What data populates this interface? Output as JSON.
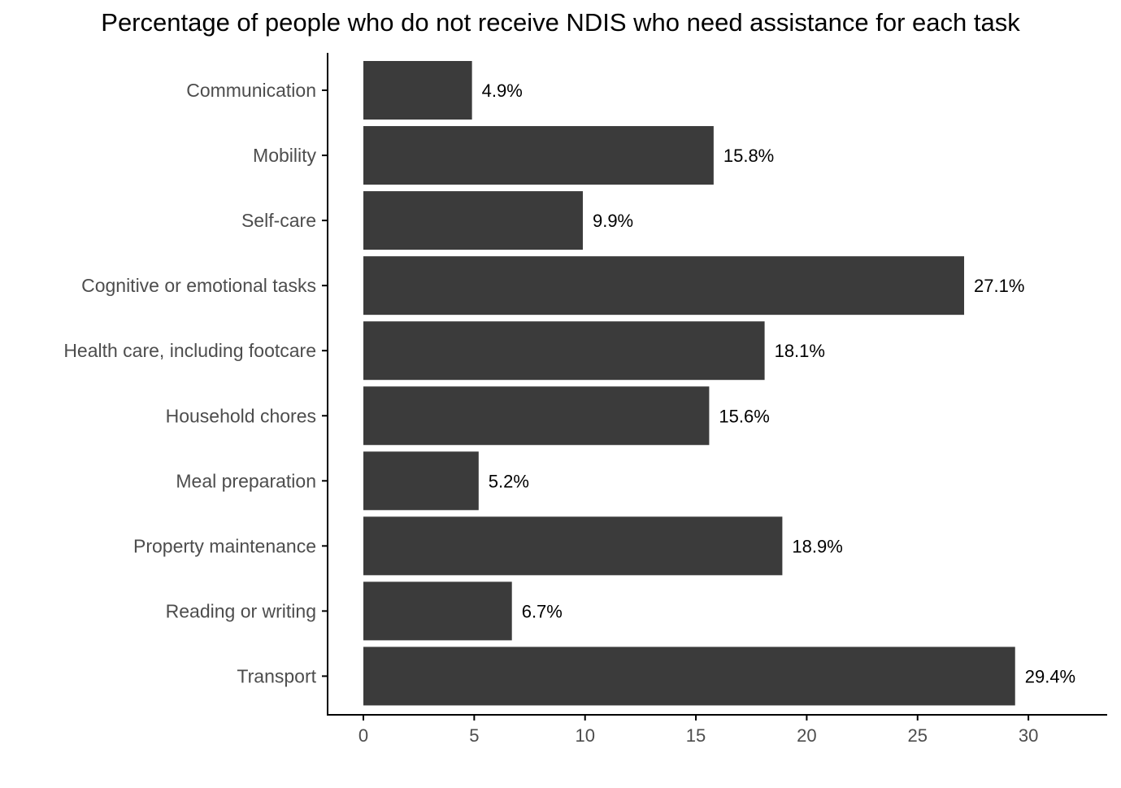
{
  "chart_data": {
    "type": "bar",
    "orientation": "horizontal",
    "title": "Percentage of people who do not receive NDIS who need assistance for each task",
    "xlabel": "",
    "ylabel": "",
    "categories": [
      "Communication",
      "Mobility",
      "Self-care",
      "Cognitive or emotional tasks",
      "Health care, including footcare",
      "Household chores",
      "Meal preparation",
      "Property maintenance",
      "Reading or writing",
      "Transport"
    ],
    "values": [
      4.9,
      15.8,
      9.9,
      27.1,
      18.1,
      15.6,
      5.2,
      18.9,
      6.7,
      29.4
    ],
    "data_labels": [
      "4.9%",
      "15.8%",
      "9.9%",
      "27.1%",
      "18.1%",
      "15.6%",
      "5.2%",
      "18.9%",
      "6.7%",
      "29.4%"
    ],
    "xlim": [
      0,
      32
    ],
    "xticks": [
      0,
      5,
      10,
      15,
      20,
      25,
      30
    ],
    "grid": false,
    "legend": "none",
    "bar_color": "#3b3b3b",
    "axis_color": "#000000",
    "text_color": "#4d4d4d"
  }
}
